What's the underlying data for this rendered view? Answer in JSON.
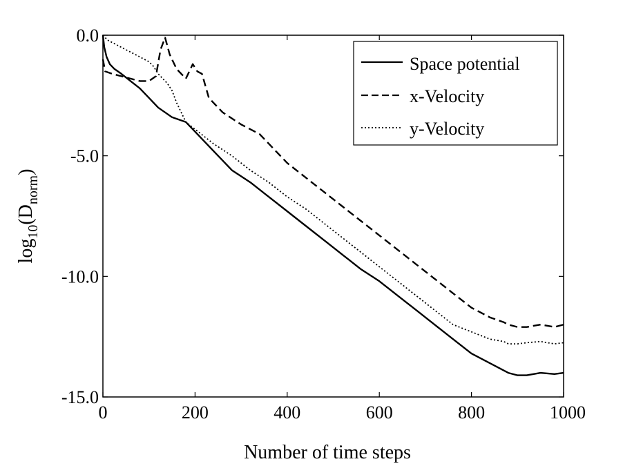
{
  "chart_data": {
    "type": "line",
    "title": "",
    "xlabel": "Number of time steps",
    "ylabel": {
      "base": "log",
      "sub1": "10",
      "open": "(D",
      "sub2": "norm",
      "close": ")"
    },
    "xlim": [
      0,
      1000
    ],
    "ylim": [
      -15,
      0
    ],
    "xticks": [
      0,
      200,
      400,
      600,
      800,
      1000
    ],
    "xtick_labels": [
      "0",
      "200",
      "400",
      "600",
      "800",
      "1000"
    ],
    "yticks": [
      0,
      -5,
      -10,
      -15
    ],
    "ytick_labels": [
      "0.0",
      "-5.0",
      "-10.0",
      "-15.0"
    ],
    "legend_position": "top-right",
    "series": [
      {
        "name": "Space potential",
        "style": "solid",
        "x": [
          0,
          3,
          8,
          15,
          25,
          40,
          60,
          80,
          100,
          120,
          150,
          180,
          200,
          240,
          280,
          320,
          360,
          400,
          440,
          480,
          520,
          560,
          600,
          640,
          680,
          720,
          760,
          800,
          840,
          870,
          880,
          900,
          920,
          950,
          980,
          1000
        ],
        "y": [
          0.0,
          -0.5,
          -0.9,
          -1.2,
          -1.4,
          -1.6,
          -1.9,
          -2.2,
          -2.6,
          -3.0,
          -3.4,
          -3.6,
          -4.0,
          -4.8,
          -5.6,
          -6.1,
          -6.7,
          -7.3,
          -7.9,
          -8.5,
          -9.1,
          -9.7,
          -10.2,
          -10.8,
          -11.4,
          -12.0,
          -12.6,
          -13.2,
          -13.6,
          -13.9,
          -14.0,
          -14.1,
          -14.1,
          -14.0,
          -14.05,
          -14.0
        ]
      },
      {
        "name": "x-Velocity",
        "style": "dashed",
        "x": [
          0,
          5,
          20,
          40,
          60,
          80,
          100,
          115,
          125,
          135,
          145,
          160,
          180,
          195,
          205,
          215,
          230,
          260,
          300,
          340,
          400,
          440,
          480,
          520,
          560,
          600,
          640,
          680,
          720,
          760,
          800,
          840,
          870,
          880,
          900,
          920,
          950,
          980,
          1000
        ],
        "y": [
          -1.0,
          -1.5,
          -1.6,
          -1.7,
          -1.8,
          -1.9,
          -1.9,
          -1.7,
          -0.6,
          -0.1,
          -0.8,
          -1.4,
          -1.8,
          -1.2,
          -1.5,
          -1.6,
          -2.6,
          -3.2,
          -3.7,
          -4.1,
          -5.3,
          -5.9,
          -6.5,
          -7.1,
          -7.7,
          -8.3,
          -8.9,
          -9.5,
          -10.1,
          -10.7,
          -11.3,
          -11.7,
          -11.9,
          -12.0,
          -12.1,
          -12.1,
          -12.0,
          -12.1,
          -12.0
        ]
      },
      {
        "name": "y-Velocity",
        "style": "dotted",
        "x": [
          0,
          10,
          30,
          50,
          70,
          90,
          100,
          110,
          120,
          130,
          140,
          150,
          160,
          180,
          200,
          240,
          280,
          320,
          360,
          400,
          440,
          480,
          520,
          560,
          600,
          640,
          680,
          720,
          760,
          800,
          840,
          870,
          880,
          900,
          920,
          950,
          980,
          1000
        ],
        "y": [
          0.0,
          -0.2,
          -0.4,
          -0.6,
          -0.8,
          -1.0,
          -1.1,
          -1.3,
          -1.6,
          -1.8,
          -2.0,
          -2.3,
          -2.8,
          -3.6,
          -3.9,
          -4.5,
          -5.0,
          -5.6,
          -6.1,
          -6.7,
          -7.2,
          -7.8,
          -8.4,
          -9.0,
          -9.6,
          -10.2,
          -10.8,
          -11.4,
          -12.0,
          -12.3,
          -12.6,
          -12.7,
          -12.8,
          -12.8,
          -12.75,
          -12.7,
          -12.8,
          -12.75
        ]
      }
    ]
  },
  "colors": {
    "line": "#000000",
    "background": "#ffffff"
  }
}
